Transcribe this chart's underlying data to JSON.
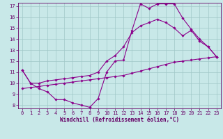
{
  "line1_x": [
    0,
    1,
    2,
    3,
    4,
    5,
    6,
    7,
    8,
    9,
    10,
    11,
    12,
    13,
    14,
    15,
    16,
    17,
    18,
    19,
    20,
    21,
    22,
    23
  ],
  "line1_y": [
    11.2,
    10.0,
    9.5,
    9.2,
    8.5,
    8.5,
    8.2,
    8.0,
    7.8,
    8.6,
    11.0,
    12.0,
    12.1,
    14.8,
    17.2,
    16.8,
    17.2,
    17.2,
    17.2,
    15.9,
    14.9,
    14.0,
    13.3,
    12.4
  ],
  "line2_x": [
    0,
    1,
    2,
    3,
    4,
    5,
    6,
    7,
    8,
    9,
    10,
    11,
    12,
    13,
    14,
    15,
    16,
    17,
    18,
    19,
    20,
    21,
    22,
    23
  ],
  "line2_y": [
    11.2,
    10.0,
    10.0,
    10.2,
    10.3,
    10.4,
    10.5,
    10.6,
    10.7,
    11.0,
    12.0,
    12.5,
    13.3,
    14.6,
    15.2,
    15.5,
    15.8,
    15.5,
    15.0,
    14.3,
    14.8,
    13.8,
    13.3,
    12.4
  ],
  "line3_x": [
    0,
    1,
    2,
    3,
    4,
    5,
    6,
    7,
    8,
    9,
    10,
    11,
    12,
    13,
    14,
    15,
    16,
    17,
    18,
    19,
    20,
    21,
    22,
    23
  ],
  "line3_y": [
    9.5,
    9.6,
    9.7,
    9.8,
    9.9,
    10.0,
    10.1,
    10.2,
    10.3,
    10.4,
    10.5,
    10.6,
    10.7,
    10.9,
    11.1,
    11.3,
    11.5,
    11.7,
    11.9,
    12.0,
    12.1,
    12.2,
    12.3,
    12.4
  ],
  "color": "#8B008B",
  "bg_color": "#c8e8e8",
  "grid_color": "#a0c8c8",
  "xlabel": "Windchill (Refroidissement éolien,°C)",
  "ylim": [
    8,
    17
  ],
  "xlim": [
    0,
    23
  ],
  "yticks": [
    8,
    9,
    10,
    11,
    12,
    13,
    14,
    15,
    16,
    17
  ],
  "xticks": [
    0,
    1,
    2,
    3,
    4,
    5,
    6,
    7,
    8,
    9,
    10,
    11,
    12,
    13,
    14,
    15,
    16,
    17,
    18,
    19,
    20,
    21,
    22,
    23
  ],
  "marker": "D",
  "marker_size": 1.8,
  "line_width": 0.8,
  "label_fontsize": 5.5,
  "tick_fontsize": 5.0
}
